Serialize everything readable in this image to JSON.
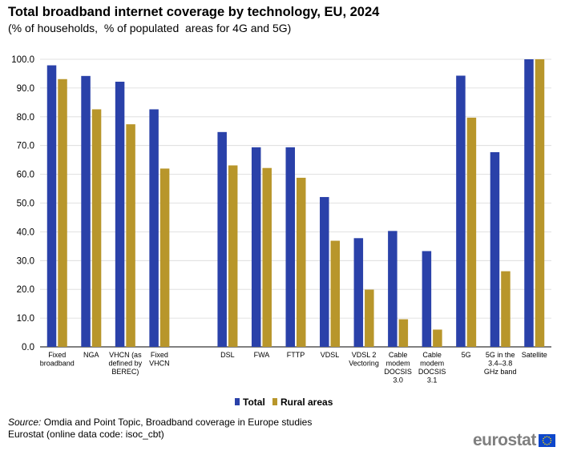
{
  "header": {
    "title": "Total broadband internet coverage by technology, EU, 2024",
    "subtitle": "(% of households,  % of populated  areas for 4G and 5G)"
  },
  "chart_data": {
    "type": "bar",
    "title": "Total broadband internet coverage by technology, EU, 2024",
    "subtitle": "(% of households,  % of populated  areas for 4G and 5G)",
    "xlabel": "",
    "ylabel": "",
    "ylim": [
      0,
      100
    ],
    "yticks": [
      "0.0",
      "10.0",
      "20.0",
      "30.0",
      "40.0",
      "50.0",
      "60.0",
      "70.0",
      "80.0",
      "90.0",
      "100.0"
    ],
    "grid": true,
    "legend_position": "bottom-center",
    "categories": [
      [
        "Fixed",
        "broadband"
      ],
      [
        "NGA"
      ],
      [
        "VHCN (as",
        "defined by",
        "BEREC)"
      ],
      [
        "Fixed",
        "VHCN"
      ],
      [],
      [
        "DSL"
      ],
      [
        "FWA"
      ],
      [
        "FTTP"
      ],
      [
        "VDSL"
      ],
      [
        "VDSL 2",
        "Vectoring"
      ],
      [
        "Cable",
        "modem",
        "DOCSIS",
        "3.0"
      ],
      [
        "Cable",
        "modem",
        "DOCSIS",
        "3.1"
      ],
      [
        "5G"
      ],
      [
        "5G in the",
        "3.4–3.8",
        "GHz band"
      ],
      [
        "Satellite"
      ]
    ],
    "series": [
      {
        "name": "Total",
        "color": "#2a41a9",
        "values": [
          97.9,
          94.2,
          92.2,
          82.6,
          null,
          74.7,
          69.4,
          69.4,
          52.1,
          37.8,
          40.3,
          33.3,
          94.3,
          67.7,
          100.0
        ]
      },
      {
        "name": "Rural areas",
        "color": "#b8962b",
        "values": [
          93.1,
          82.6,
          77.4,
          62.0,
          null,
          63.1,
          62.2,
          58.8,
          36.9,
          19.9,
          9.6,
          6.0,
          79.7,
          26.3,
          100.0
        ]
      }
    ]
  },
  "legend": {
    "items": [
      "Total",
      "Rural areas"
    ]
  },
  "source": {
    "label": "Source:",
    "text": " Omdia and Point Topic, Broadband coverage in Europe studies",
    "line2": "Eurostat (online data code: isoc_cbt)"
  },
  "logo": {
    "text": "eurostat"
  }
}
